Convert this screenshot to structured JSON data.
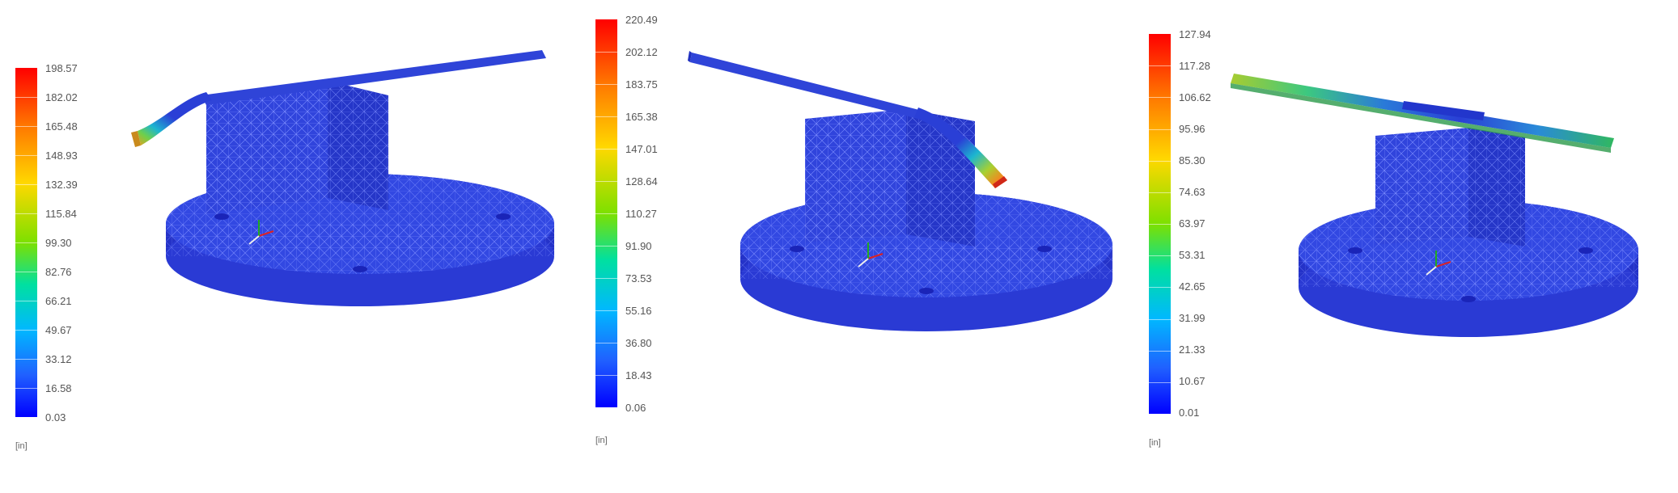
{
  "panels": [
    {
      "legend": {
        "max_label": "198.57",
        "labels": [
          "198.57",
          "182.02",
          "165.48",
          "148.93",
          "132.39",
          "115.84",
          "99.30",
          "82.76",
          "66.21",
          "49.67",
          "33.12",
          "16.58",
          "0.03"
        ],
        "unit": "[in]"
      }
    },
    {
      "legend": {
        "max_label": "220.49",
        "labels": [
          "220.49",
          "202.12",
          "183.75",
          "165.38",
          "147.01",
          "128.64",
          "110.27",
          "91.90",
          "73.53",
          "55.16",
          "36.80",
          "18.43",
          "0.06"
        ],
        "unit": "[in]"
      }
    },
    {
      "legend": {
        "max_label": "127.94",
        "labels": [
          "127.94",
          "117.28",
          "106.62",
          "95.96",
          "85.30",
          "74.63",
          "63.97",
          "53.31",
          "42.65",
          "31.99",
          "21.33",
          "10.67",
          "0.01"
        ],
        "unit": "[in]"
      }
    }
  ],
  "colors": {
    "mesh_blue": "#2a3fd6",
    "mesh_line": "#6e80ff",
    "scale_top": "#ff0000",
    "scale_bottom": "#0000ff"
  }
}
